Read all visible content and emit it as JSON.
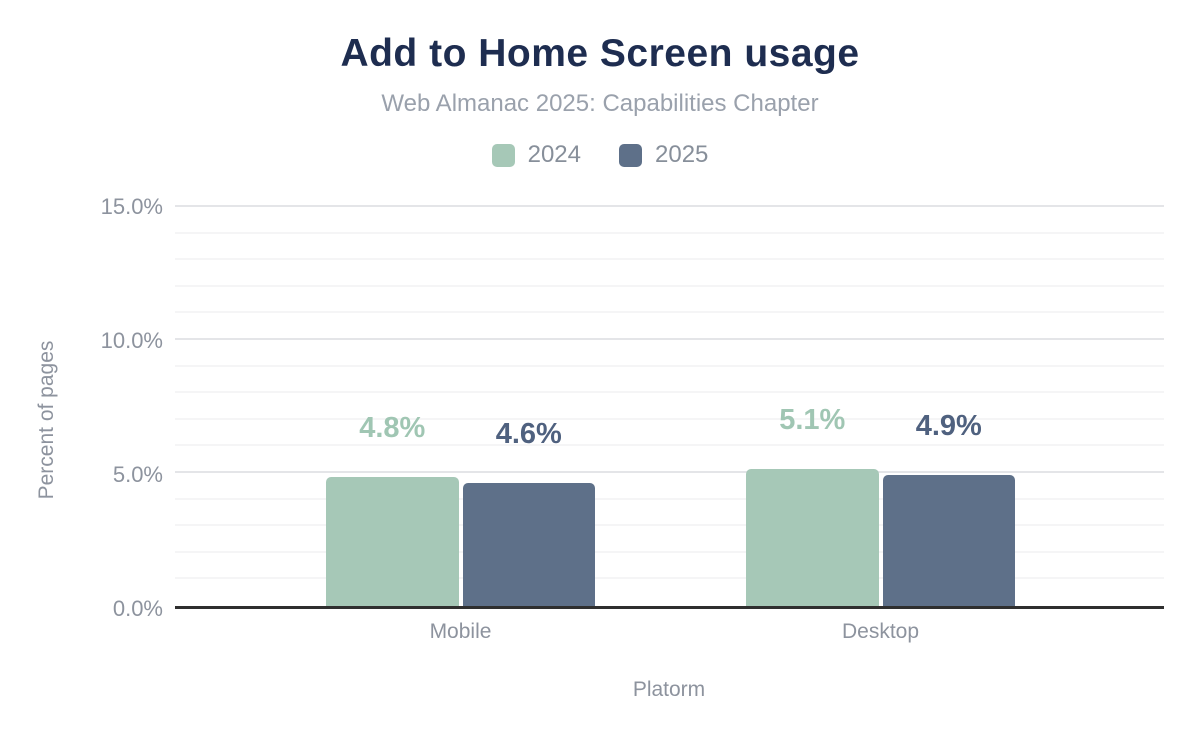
{
  "header": {
    "title": "Add to Home Screen usage",
    "subtitle": "Web Almanac 2025: Capabilities Chapter"
  },
  "legend": {
    "items": [
      {
        "label": "2024",
        "color": "#a6c8b7"
      },
      {
        "label": "2025",
        "color": "#5e7089"
      }
    ]
  },
  "chart_data": {
    "type": "bar",
    "title": "Add to Home Screen usage",
    "subtitle": "Web Almanac 2025: Capabilities Chapter",
    "categories": [
      "Mobile",
      "Desktop"
    ],
    "series": [
      {
        "name": "2024",
        "values": [
          4.8,
          5.1
        ],
        "labels": [
          "4.8%",
          "5.1%"
        ],
        "color": "#a6c8b7",
        "label_color": "#a0c6b3"
      },
      {
        "name": "2025",
        "values": [
          4.6,
          4.9
        ],
        "labels": [
          "4.6%",
          "4.9%"
        ],
        "color": "#5e7089",
        "label_color": "#4f617f"
      }
    ],
    "xlabel": "Platorm",
    "ylabel": "Percent of pages",
    "ylim": [
      0,
      15
    ],
    "yticks": [
      {
        "value": 0,
        "label": "0.0%"
      },
      {
        "value": 5,
        "label": "5.0%"
      },
      {
        "value": 10,
        "label": "10.0%"
      },
      {
        "value": 15,
        "label": "15.0%"
      }
    ],
    "minor_grid_step": 1,
    "grid": true,
    "legend_position": "top"
  },
  "colors": {
    "title": "#1e2d50",
    "subtitle": "#9aa1ac",
    "axis_text": "#8d939e",
    "minor_grid": "#f5f5f6",
    "major_grid": "#e4e5e8",
    "axis_line": "#2f2f2f"
  }
}
